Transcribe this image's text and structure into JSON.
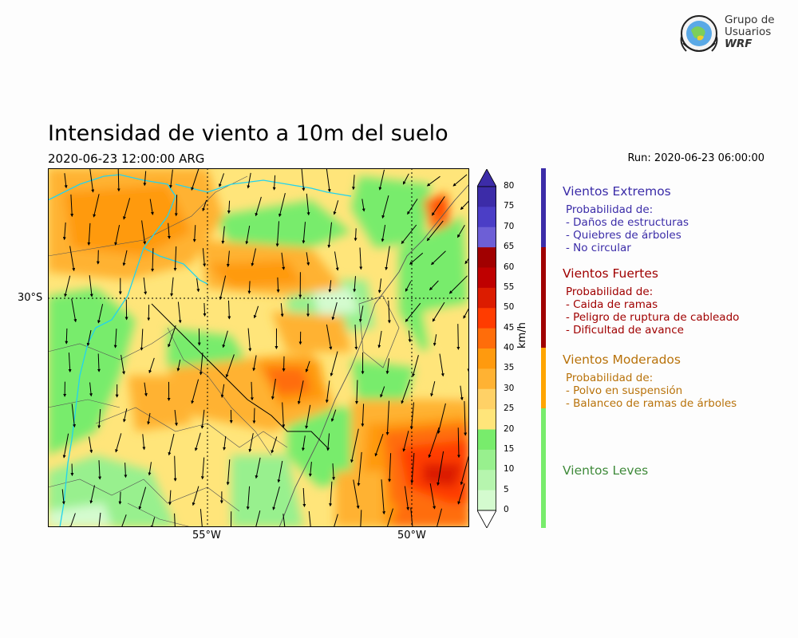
{
  "title": "Intensidad de viento a 10m del suelo",
  "valid_time": "2020-06-23 12:00:00 ARG",
  "run": "Run: 2020-06-23 06:00:00",
  "logo": {
    "line1": "Grupo de",
    "line2": "Usuarios",
    "line3": "WRF"
  },
  "map": {
    "lat_labels": [
      "30°S"
    ],
    "lon_labels": [
      "55°W",
      "50°W"
    ],
    "variable": "Viento a 10m",
    "units": "km/h"
  },
  "colorbar": {
    "unit": "km/h",
    "ticks": [
      "80",
      "75",
      "70",
      "65",
      "60",
      "55",
      "50",
      "45",
      "40",
      "35",
      "30",
      "25",
      "20",
      "15",
      "10",
      "5",
      "0"
    ],
    "colors": [
      "#3c2ca8",
      "#4b3ec6",
      "#6d5fd6",
      "#a10000",
      "#bf0000",
      "#dc1c00",
      "#ff3c00",
      "#ff6d0a",
      "#ff9a0e",
      "#ffb233",
      "#ffd166",
      "#ffe57a",
      "#78ec6c",
      "#98f08e",
      "#b6f5ae",
      "#d4fbcf",
      "#ffffff"
    ]
  },
  "categories": [
    {
      "title": "Vientos Extremos",
      "color": "#3b2ca8",
      "lines": [
        "Probabilidad de:",
        "- Daños de estructuras",
        "- Quiebres de árboles",
        "- No circular"
      ]
    },
    {
      "title": "Vientos Fuertes",
      "color": "#a00000",
      "lines": [
        "Probabilidad de:",
        "- Caida de ramas",
        "- Peligro de ruptura de cableado",
        "- Dificultad de avance"
      ]
    },
    {
      "title": "Vientos Moderados",
      "color": "#b8720a",
      "lines": [
        "Probabilidad de:",
        "- Polvo en suspensión",
        "- Balanceo de ramas de árboles"
      ]
    },
    {
      "title": "Vientos Leves",
      "color": "#3f8a3a",
      "lines": []
    }
  ],
  "legend_bar_colors": {
    "extremos": "#3b2ca8",
    "fuertes": "#a00000",
    "moderados": "#ffa500",
    "leves": "#78ec6c"
  }
}
